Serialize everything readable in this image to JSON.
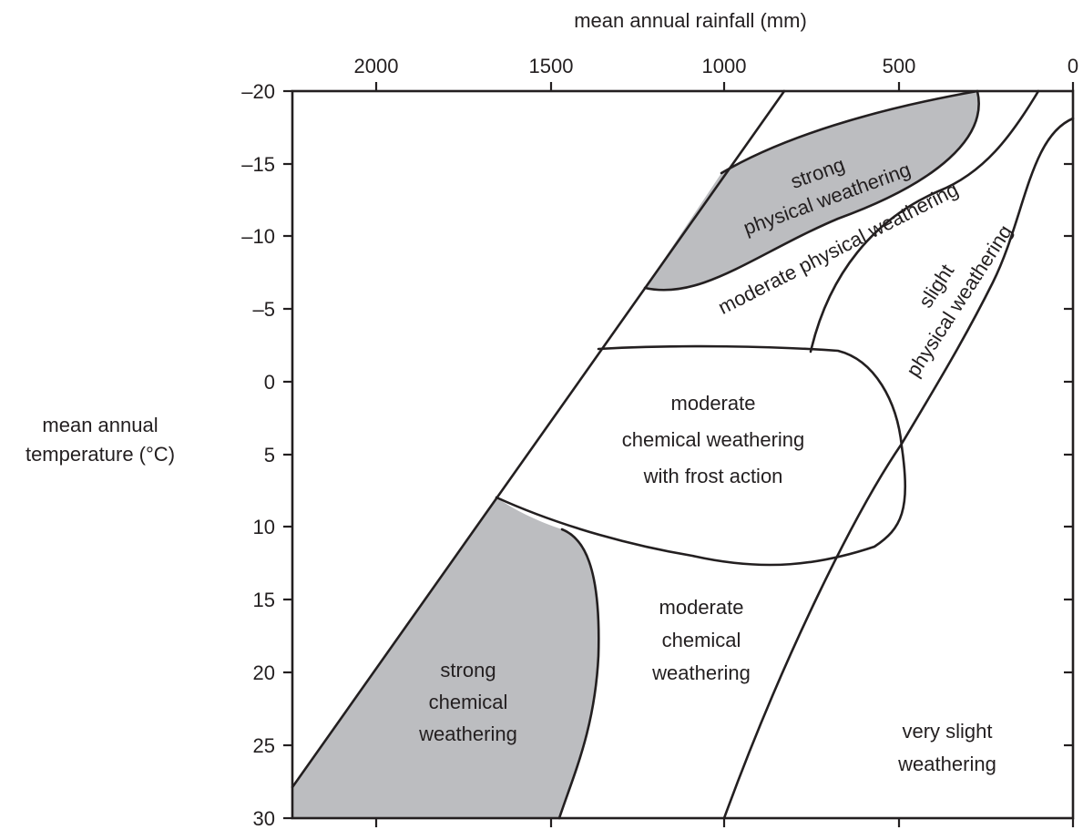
{
  "diagram": {
    "top_axis": {
      "title": "mean annual rainfall (mm)",
      "ticks": [
        "2000",
        "1500",
        "1000",
        "500",
        "0"
      ],
      "values": [
        2000,
        1500,
        1000,
        500,
        0
      ],
      "range": [
        2250,
        0
      ]
    },
    "left_axis": {
      "title_line1": "mean annual",
      "title_line2": "temperature (°C)",
      "ticks": [
        "–20",
        "–15",
        "–10",
        "–5",
        "0",
        "5",
        "10",
        "15",
        "20",
        "25",
        "30"
      ],
      "values": [
        -20,
        -15,
        -10,
        -5,
        0,
        5,
        10,
        15,
        20,
        25,
        30
      ],
      "range": [
        -20,
        30
      ]
    },
    "regions": {
      "strong_physical": {
        "line1": "strong",
        "line2": "physical weathering",
        "shaded": true
      },
      "moderate_physical": {
        "text": "moderate physical weathering",
        "shaded": false
      },
      "slight_physical": {
        "line1": "slight",
        "line2": "physical weathering",
        "shaded": false
      },
      "moderate_chemical_frost": {
        "line1": "moderate",
        "line2": "chemical weathering",
        "line3": "with frost action",
        "shaded": false
      },
      "strong_chemical": {
        "line1": "strong",
        "line2": "chemical",
        "line3": "weathering",
        "shaded": true
      },
      "moderate_chemical": {
        "line1": "moderate",
        "line2": "chemical",
        "line3": "weathering",
        "shaded": false
      },
      "very_slight": {
        "line1": "very slight",
        "line2": "weathering",
        "shaded": false
      }
    },
    "colors": {
      "shade": "#bcbdc0",
      "line": "#231f20",
      "background": "#ffffff"
    }
  }
}
